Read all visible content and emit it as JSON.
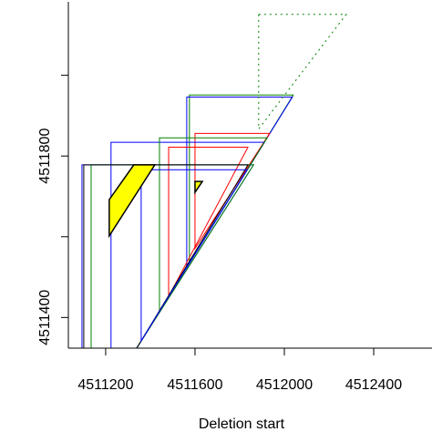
{
  "chart_data": {
    "type": "polygon",
    "x_label": "Deletion start",
    "xlim": [
      4511033,
      4512661
    ],
    "ylim": [
      4511324,
      4512182
    ],
    "xticks": [
      4511200,
      4511600,
      4512000,
      4512400
    ],
    "yticks": [
      4511400,
      {
        "value": 4511600,
        "label": null
      },
      4511800,
      {
        "value": 4512000,
        "label": null
      }
    ],
    "shapes": [
      {
        "color": "#008000",
        "points": [
          [
            4511575,
            4511951
          ],
          [
            4512040,
            4511951
          ],
          [
            4511575,
            4511535
          ]
        ]
      },
      {
        "color": "#0000ff",
        "points": [
          [
            4511563,
            4511946
          ],
          [
            4512036,
            4511946
          ],
          [
            4511563,
            4511524
          ]
        ]
      },
      {
        "color": "#ff0000",
        "points": [
          [
            4511600,
            4511856
          ],
          [
            4511934,
            4511856
          ],
          [
            4511600,
            4511571
          ]
        ]
      },
      {
        "color": "#ff0000",
        "points": [
          [
            4511482,
            4511822
          ],
          [
            4511837,
            4511822
          ],
          [
            4511482,
            4511452
          ]
        ]
      },
      {
        "color": "#0000ff",
        "points": [
          [
            4511224,
            4511834
          ],
          [
            4511911,
            4511834
          ],
          [
            4511339,
            4511324
          ],
          [
            4511224,
            4511324
          ]
        ]
      },
      {
        "color": "#008000",
        "points": [
          [
            4511441,
            4511845
          ],
          [
            4511923,
            4511845
          ],
          [
            4511441,
            4511416
          ]
        ]
      },
      {
        "color": "#0000ff",
        "points": [
          [
            4511094,
            4511778
          ],
          [
            4511862,
            4511778
          ],
          [
            4511339,
            4511324
          ],
          [
            4511094,
            4511324
          ]
        ]
      },
      {
        "color": "#008000",
        "points": [
          [
            4511135,
            4511778
          ],
          [
            4511862,
            4511778
          ],
          [
            4511339,
            4511324
          ],
          [
            4511135,
            4511324
          ]
        ]
      },
      {
        "color": "#000000",
        "points": [
          [
            4511102,
            4511778
          ],
          [
            4511837,
            4511778
          ],
          [
            4511339,
            4511324
          ],
          [
            4511102,
            4511324
          ]
        ]
      },
      {
        "color": "#0000ff",
        "points": [
          [
            4511359,
            4511766
          ],
          [
            4511833,
            4511766
          ],
          [
            4511359,
            4511342
          ]
        ]
      },
      {
        "color": "#008000",
        "points": [
          [
            4511885,
            4512151
          ],
          [
            4512277,
            4512151
          ],
          [
            4511885,
            4511867
          ]
        ],
        "dash": "dotted"
      },
      {
        "color": "#000000",
        "fill": "#ffff00",
        "points": [
          [
            4511216,
            4511692
          ],
          [
            4511326,
            4511778
          ],
          [
            4511420,
            4511778
          ],
          [
            4511216,
            4511602
          ]
        ]
      },
      {
        "color": "#000000",
        "fill": "#ffff00",
        "points": [
          [
            4511600,
            4511737
          ],
          [
            4511633,
            4511737
          ],
          [
            4511600,
            4511710
          ]
        ]
      }
    ]
  }
}
